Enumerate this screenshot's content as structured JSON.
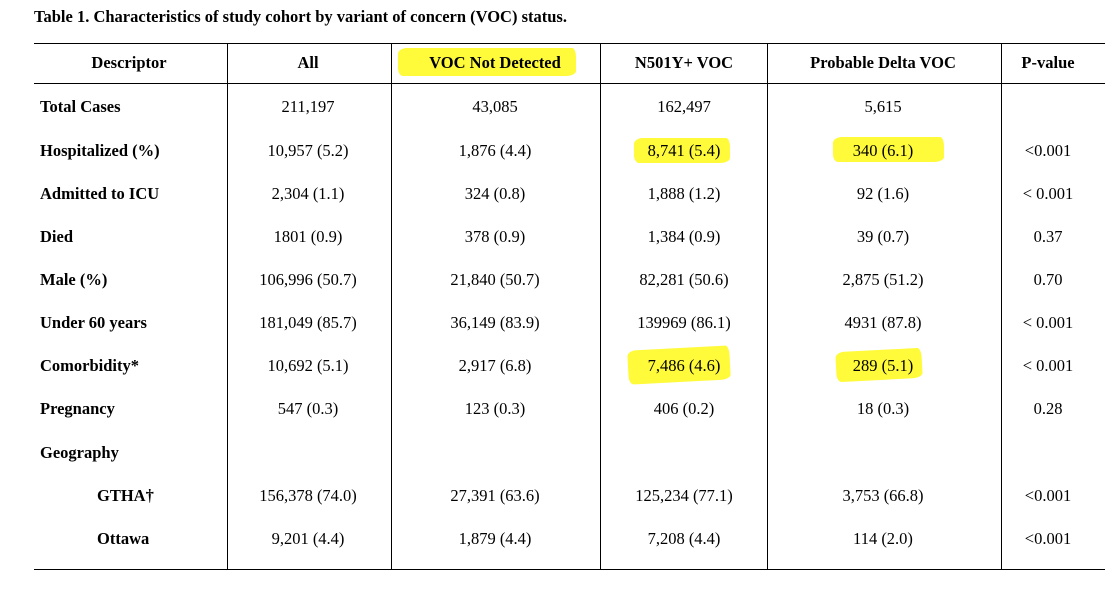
{
  "caption": "Table 1. Characteristics of study cohort by variant of concern (VOC) status.",
  "headers": [
    "Descriptor",
    "All",
    "VOC Not Detected",
    "N501Y+ VOC",
    "Probable Delta VOC",
    "P-value"
  ],
  "rows": [
    {
      "label": "Total Cases",
      "values": [
        "211,197",
        "43,085",
        "162,497",
        "5,615",
        ""
      ]
    },
    {
      "label": "Hospitalized (%)",
      "values": [
        "10,957 (5.2)",
        "1,876 (4.4)",
        "8,741 (5.4)",
        "340 (6.1)",
        "<0.001"
      ]
    },
    {
      "label": "Admitted to ICU",
      "values": [
        "2,304 (1.1)",
        "324 (0.8)",
        "1,888 (1.2)",
        "92 (1.6)",
        "< 0.001"
      ]
    },
    {
      "label": "Died",
      "values": [
        "1801 (0.9)",
        "378 (0.9)",
        "1,384 (0.9)",
        "39 (0.7)",
        "0.37"
      ]
    },
    {
      "label": "Male (%)",
      "values": [
        "106,996 (50.7)",
        "21,840 (50.7)",
        "82,281 (50.6)",
        "2,875 (51.2)",
        "0.70"
      ]
    },
    {
      "label": "Under 60 years",
      "values": [
        "181,049 (85.7)",
        "36,149 (83.9)",
        "139969 (86.1)",
        "4931 (87.8)",
        "< 0.001"
      ]
    },
    {
      "label": "Comorbidity*",
      "values": [
        "10,692 (5.1)",
        "2,917 (6.8)",
        "7,486 (4.6)",
        "289 (5.1)",
        "< 0.001"
      ]
    },
    {
      "label": "Pregnancy",
      "values": [
        "547 (0.3)",
        "123 (0.3)",
        "406 (0.2)",
        "18 (0.3)",
        "0.28"
      ]
    },
    {
      "label": "Geography",
      "values": [
        "",
        "",
        "",
        "",
        ""
      ]
    },
    {
      "label": "GTHA†",
      "values": [
        "156,378 (74.0)",
        "27,391 (63.6)",
        "125,234 (77.1)",
        "3,753 (66.8)",
        "<0.001"
      ]
    },
    {
      "label": "Ottawa",
      "values": [
        "9,201 (4.4)",
        "1,879 (4.4)",
        "7,208 (4.4)",
        "114 (2.0)",
        "<0.001"
      ]
    }
  ],
  "highlight_color": "#fffa3a",
  "highlighted_cells": [
    "headers.2",
    "rows.1.values.2",
    "rows.1.values.3",
    "rows.6.values.2",
    "rows.6.values.3"
  ]
}
